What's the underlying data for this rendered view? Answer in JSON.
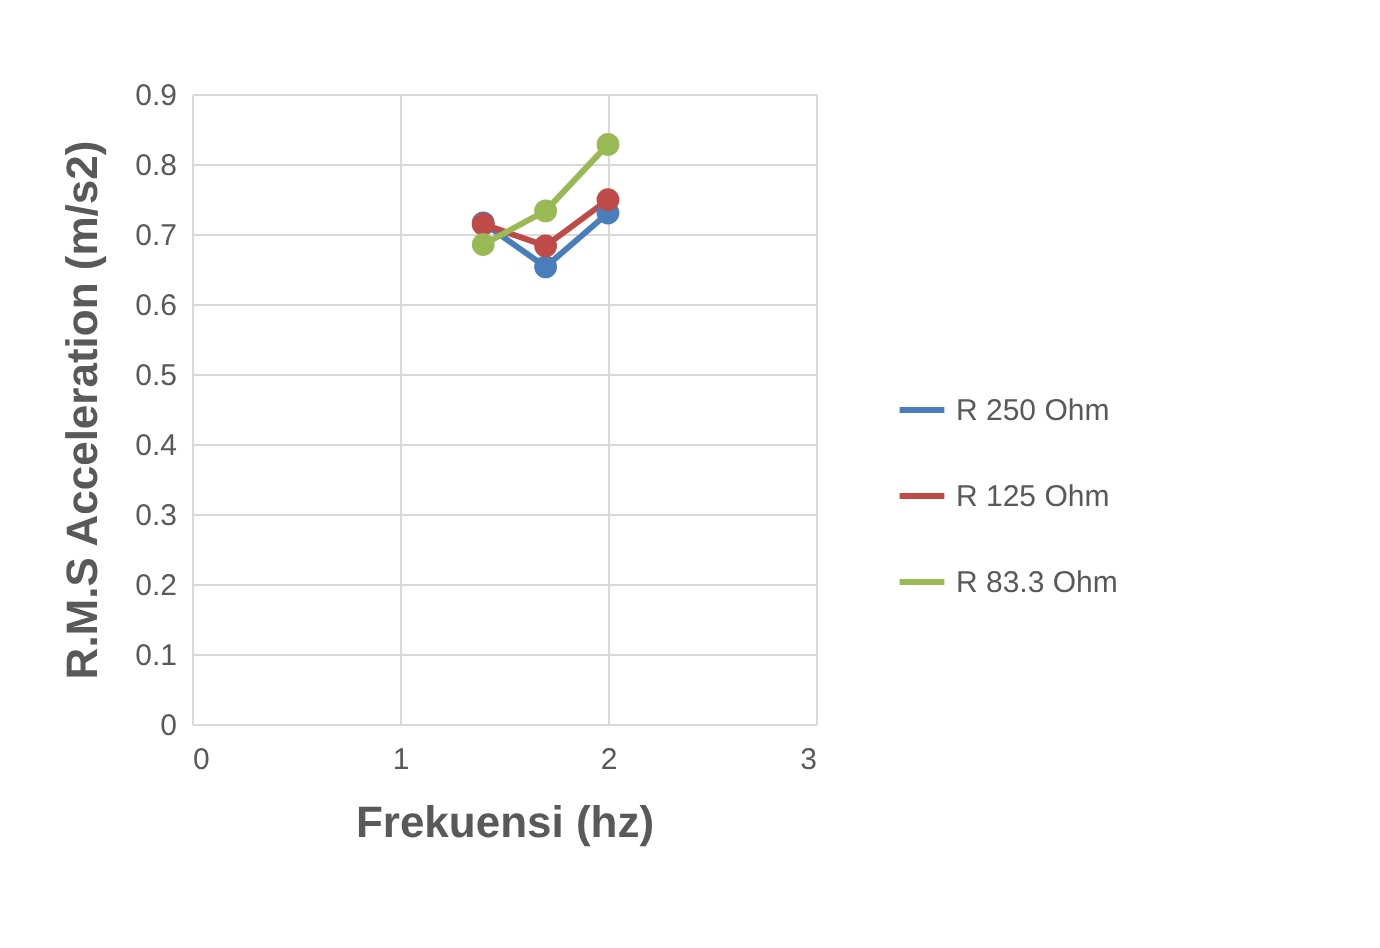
{
  "chart_data": {
    "type": "line",
    "xlabel": "Frekuensi (hz)",
    "ylabel": "R.M.S Acceleration (m/s2)",
    "x": [
      1.4,
      1.7,
      2.0
    ],
    "series": [
      {
        "name": "R 250 Ohm",
        "color": "#4a7ebb",
        "values": [
          0.716,
          0.653,
          0.73
        ]
      },
      {
        "name": "R 125 Ohm",
        "color": "#be4b48",
        "values": [
          0.714,
          0.683,
          0.749
        ]
      },
      {
        "name": "R 83.3 Ohm",
        "color": "#98b954",
        "values": [
          0.685,
          0.733,
          0.828
        ]
      }
    ],
    "xlim": [
      0,
      3
    ],
    "xticks": [
      0,
      1,
      2,
      3
    ],
    "ylim": [
      0,
      0.9
    ],
    "yticks": [
      0,
      0.1,
      0.2,
      0.3,
      0.4,
      0.5,
      0.6,
      0.7,
      0.8,
      0.9
    ],
    "grid": true,
    "legend": "right",
    "marker": "circle",
    "line_style": "solid"
  }
}
